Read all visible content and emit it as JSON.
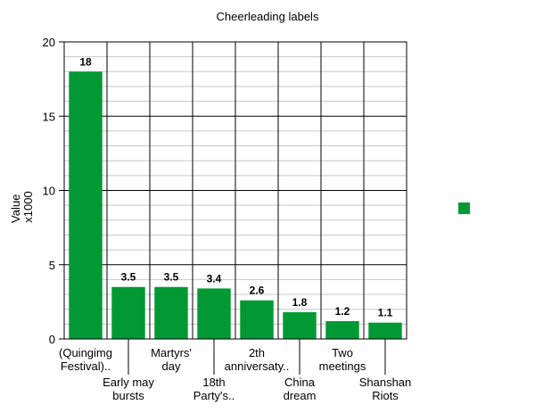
{
  "chart_data": {
    "type": "bar",
    "title": "Cheerleading labels",
    "ylabel_lines": [
      "Value",
      "x1000"
    ],
    "xlabel": "",
    "ylim": [
      0,
      20
    ],
    "yticks": [
      0,
      5,
      10,
      15,
      20
    ],
    "minor_step": 1,
    "grid": true,
    "legend_placement": "right",
    "categories": [
      [
        "(Quingimg",
        "Festival).."
      ],
      [
        "Early may",
        "bursts"
      ],
      [
        "Martyrs'",
        "day"
      ],
      [
        "18th",
        "Party's.."
      ],
      [
        "2th",
        "anniversaty.."
      ],
      [
        "China",
        "dream"
      ],
      [
        "Two",
        "meetings"
      ],
      [
        "Shanshan",
        "Riots"
      ]
    ],
    "values": [
      18,
      3.5,
      3.5,
      3.4,
      2.6,
      1.8,
      1.2,
      1.1
    ],
    "value_labels": [
      "18",
      "3.5",
      "3.5",
      "3.4",
      "2.6",
      "1.8",
      "1.2",
      "1.1"
    ],
    "series": [
      {
        "color": "#009933"
      }
    ]
  }
}
